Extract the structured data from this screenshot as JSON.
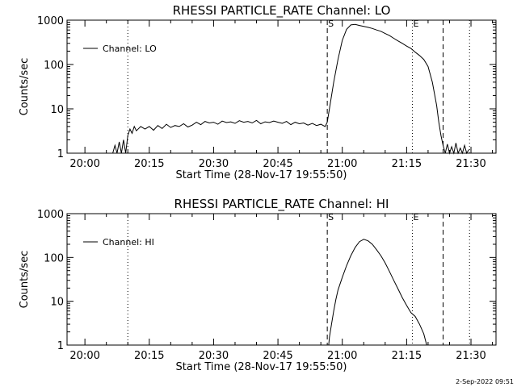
{
  "footer": {
    "timestamp": "2-Sep-2022 09:51"
  },
  "chart_data": [
    {
      "type": "line",
      "title": "RHESSI PARTICLE_RATE Channel: LO",
      "xlabel": "Start Time (28-Nov-17 19:55:50)",
      "ylabel": "Counts/sec",
      "yscale": "log",
      "xlim": [
        "19:55:50",
        "21:35:50"
      ],
      "ylim": [
        1,
        1000
      ],
      "x_ticks": [
        "20:00",
        "20:15",
        "20:30",
        "20:45",
        "21:00",
        "21:15",
        "21:30"
      ],
      "y_ticks": [
        "1",
        "10",
        "100",
        "1000"
      ],
      "legend": {
        "position": "top-left",
        "entries": [
          "Channel: LO"
        ]
      },
      "markers": [
        {
          "time": "20:10:00",
          "style": "dotted",
          "label": ""
        },
        {
          "time": "20:56:30",
          "style": "dashed",
          "label": "S"
        },
        {
          "time": "21:16:20",
          "style": "dotted",
          "label": "E"
        },
        {
          "time": "21:23:30",
          "style": "dashed",
          "label": ""
        },
        {
          "time": "21:29:40",
          "style": "dotted",
          "label": ""
        }
      ],
      "series": [
        {
          "name": "Channel: LO",
          "x": [
            "20:06:30",
            "20:07:00",
            "20:07:30",
            "20:08:00",
            "20:08:30",
            "20:09:00",
            "20:09:30",
            "20:10:00",
            "20:10:30",
            "20:11:00",
            "20:11:30",
            "20:12:00",
            "20:13:00",
            "20:14:00",
            "20:15:00",
            "20:16:00",
            "20:17:00",
            "20:18:00",
            "20:19:00",
            "20:20:00",
            "20:21:00",
            "20:22:00",
            "20:23:00",
            "20:24:00",
            "20:25:00",
            "20:26:00",
            "20:27:00",
            "20:28:00",
            "20:29:00",
            "20:30:00",
            "20:31:00",
            "20:32:00",
            "20:33:00",
            "20:34:00",
            "20:35:00",
            "20:36:00",
            "20:37:00",
            "20:38:00",
            "20:39:00",
            "20:40:00",
            "20:41:00",
            "20:42:00",
            "20:43:00",
            "20:44:00",
            "20:45:00",
            "20:46:00",
            "20:47:00",
            "20:48:00",
            "20:49:00",
            "20:50:00",
            "20:51:00",
            "20:52:00",
            "20:53:00",
            "20:54:00",
            "20:55:00",
            "20:56:00",
            "20:56:30",
            "20:57:00",
            "20:58:00",
            "20:59:00",
            "21:00:00",
            "21:01:00",
            "21:02:00",
            "21:03:00",
            "21:04:00",
            "21:05:00",
            "21:06:00",
            "21:07:00",
            "21:08:00",
            "21:09:00",
            "21:10:00",
            "21:11:00",
            "21:12:00",
            "21:13:00",
            "21:14:00",
            "21:15:00",
            "21:16:00",
            "21:17:00",
            "21:18:00",
            "21:19:00",
            "21:20:00",
            "21:21:00",
            "21:22:00",
            "21:22:30",
            "21:23:00",
            "21:23:30",
            "21:24:00",
            "21:24:30",
            "21:25:00",
            "21:25:30",
            "21:26:00",
            "21:26:30",
            "21:27:00",
            "21:27:30",
            "21:28:00",
            "21:28:30",
            "21:29:00",
            "21:29:30"
          ],
          "values": [
            1,
            1.5,
            1,
            1.8,
            1,
            2,
            1,
            2.5,
            3.5,
            2.8,
            4,
            3.2,
            4,
            3.5,
            4,
            3.3,
            4.2,
            3.6,
            4.5,
            3.8,
            4.2,
            4,
            4.6,
            3.9,
            4.3,
            5,
            4.4,
            5.2,
            4.8,
            5,
            4.5,
            5.3,
            4.9,
            5.1,
            4.7,
            5.4,
            5,
            5.2,
            4.8,
            5.5,
            4.6,
            5.1,
            4.9,
            5.3,
            5,
            4.7,
            5.2,
            4.4,
            5,
            4.6,
            4.8,
            4.3,
            4.7,
            4.2,
            4.5,
            4,
            5,
            10,
            40,
            130,
            350,
            620,
            780,
            800,
            760,
            720,
            690,
            650,
            600,
            560,
            500,
            450,
            390,
            340,
            300,
            260,
            230,
            190,
            160,
            130,
            90,
            40,
            12,
            5,
            2.5,
            1.5,
            1,
            1.6,
            1,
            1.4,
            1,
            1.7,
            1,
            1.3,
            1,
            1.5,
            1,
            1.2
          ]
        }
      ]
    },
    {
      "type": "line",
      "title": "RHESSI PARTICLE_RATE Channel: HI",
      "xlabel": "Start Time (28-Nov-17 19:55:50)",
      "ylabel": "Counts/sec",
      "yscale": "log",
      "xlim": [
        "19:55:50",
        "21:35:50"
      ],
      "ylim": [
        1,
        1000
      ],
      "x_ticks": [
        "20:00",
        "20:15",
        "20:30",
        "20:45",
        "21:00",
        "21:15",
        "21:30"
      ],
      "y_ticks": [
        "1",
        "10",
        "100",
        "1000"
      ],
      "legend": {
        "position": "top-left",
        "entries": [
          "Channel: HI"
        ]
      },
      "markers": [
        {
          "time": "20:10:00",
          "style": "dotted",
          "label": ""
        },
        {
          "time": "20:56:30",
          "style": "dashed",
          "label": "S"
        },
        {
          "time": "21:16:20",
          "style": "dotted",
          "label": "E"
        },
        {
          "time": "21:23:30",
          "style": "dashed",
          "label": ""
        },
        {
          "time": "21:29:40",
          "style": "dotted",
          "label": ""
        }
      ],
      "series": [
        {
          "name": "Channel: HI",
          "x": [
            "20:56:50",
            "20:57:00",
            "20:57:30",
            "20:58:00",
            "20:58:30",
            "20:59:00",
            "21:00:00",
            "21:01:00",
            "21:02:00",
            "21:03:00",
            "21:04:00",
            "21:05:00",
            "21:06:00",
            "21:07:00",
            "21:08:00",
            "21:09:00",
            "21:10:00",
            "21:11:00",
            "21:12:00",
            "21:13:00",
            "21:14:00",
            "21:15:00",
            "21:16:00",
            "21:17:00",
            "21:18:00",
            "21:19:00",
            "21:19:40"
          ],
          "values": [
            1,
            1.5,
            3,
            6,
            11,
            18,
            35,
            65,
            110,
            170,
            230,
            260,
            240,
            200,
            150,
            110,
            75,
            48,
            30,
            19,
            12,
            8,
            5.5,
            4.5,
            3,
            1.8,
            1
          ]
        }
      ]
    }
  ]
}
